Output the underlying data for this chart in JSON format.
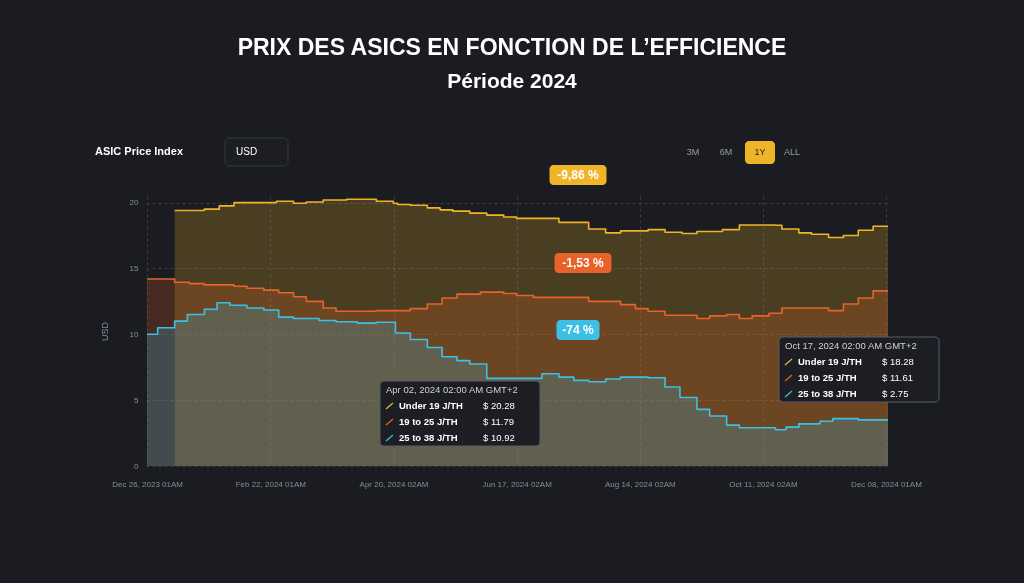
{
  "chart_data": {
    "type": "area",
    "title": "PRIX DES ASICS EN FONCTION DE L’EFFICIENCE",
    "subtitle": "Période 2024",
    "ylabel": "USD",
    "grid": true,
    "legend": "bottom",
    "line_style": "solid",
    "xlim": [
      "2023-12-25T12:00",
      "2024-12-09T00:00"
    ],
    "ylim": [
      0,
      20.5
    ],
    "yticks": [
      0,
      5,
      10,
      15,
      20
    ],
    "xticks": [
      {
        "value": "2023-12-26T01:00",
        "label": "Dec 26, 2023 01AM"
      },
      {
        "value": "2024-02-22T01:00",
        "label": "Feb 22, 2024 01AM"
      },
      {
        "value": "2024-04-20T02:00",
        "label": "Apr 20, 2024 02AM"
      },
      {
        "value": "2024-06-17T02:00",
        "label": "Jun 17, 2024 02AM"
      },
      {
        "value": "2024-08-14T02:00",
        "label": "Aug 14, 2024 02AM"
      },
      {
        "value": "2024-10-11T02:00",
        "label": "Oct 11, 2024 02AM"
      },
      {
        "value": "2024-12-08T01:00",
        "label": "Dec 08, 2024 01AM"
      }
    ],
    "series": [
      {
        "name": "Under 19 J/TH",
        "color": "#f0b429",
        "x": [
          "2024-01-08",
          "2024-01-22",
          "2024-01-22",
          "2024-01-29",
          "2024-01-29",
          "2024-02-05",
          "2024-02-05",
          "2024-02-25",
          "2024-02-25",
          "2024-03-04",
          "2024-03-04",
          "2024-03-10",
          "2024-03-10",
          "2024-03-18",
          "2024-03-18",
          "2024-03-29",
          "2024-03-29",
          "2024-04-12",
          "2024-04-12",
          "2024-04-20",
          "2024-04-20",
          "2024-04-22",
          "2024-04-22",
          "2024-04-28",
          "2024-04-28",
          "2024-05-06",
          "2024-05-06",
          "2024-05-12",
          "2024-05-12",
          "2024-05-18",
          "2024-05-18",
          "2024-05-26",
          "2024-05-26",
          "2024-06-03",
          "2024-06-03",
          "2024-06-11",
          "2024-06-11",
          "2024-06-17",
          "2024-06-17",
          "2024-07-07",
          "2024-07-07",
          "2024-07-21",
          "2024-07-21",
          "2024-07-29",
          "2024-07-29",
          "2024-08-05",
          "2024-08-05",
          "2024-08-18",
          "2024-08-18",
          "2024-08-26",
          "2024-08-26",
          "2024-09-03",
          "2024-09-03",
          "2024-09-10",
          "2024-09-10",
          "2024-09-22",
          "2024-09-22",
          "2024-09-30",
          "2024-09-30",
          "2024-10-17",
          "2024-10-17",
          "2024-10-20",
          "2024-10-20",
          "2024-10-28",
          "2024-10-28",
          "2024-11-03",
          "2024-11-03",
          "2024-11-11",
          "2024-11-11",
          "2024-11-18",
          "2024-11-18",
          "2024-11-25",
          "2024-11-25",
          "2024-12-02",
          "2024-12-02",
          "2024-12-09"
        ],
        "values": [
          19.4,
          19.4,
          19.5,
          19.5,
          19.75,
          19.75,
          20.0,
          20.0,
          20.1,
          20.1,
          19.95,
          19.95,
          20.05,
          20.05,
          20.2,
          20.2,
          20.25,
          20.25,
          20.1,
          20.1,
          19.95,
          19.95,
          19.85,
          19.85,
          19.8,
          19.8,
          19.6,
          19.6,
          19.45,
          19.45,
          19.35,
          19.35,
          19.2,
          19.2,
          19.05,
          19.05,
          18.9,
          18.9,
          18.8,
          18.8,
          18.5,
          18.5,
          18.0,
          18.0,
          17.7,
          17.7,
          17.85,
          17.85,
          17.95,
          17.95,
          17.75,
          17.75,
          17.65,
          17.65,
          17.8,
          17.8,
          17.95,
          17.95,
          18.3,
          18.3,
          18.28,
          18.28,
          18.0,
          18.0,
          17.7,
          17.7,
          17.6,
          17.6,
          17.35,
          17.35,
          17.5,
          17.5,
          17.9,
          17.9,
          18.2,
          18.2
        ]
      },
      {
        "name": "19 to 25 J/TH",
        "color": "#e8622a",
        "x": [
          "2023-12-26",
          "2024-01-08",
          "2024-01-08",
          "2024-01-15",
          "2024-01-15",
          "2024-01-22",
          "2024-01-22",
          "2024-02-05",
          "2024-02-05",
          "2024-02-11",
          "2024-02-11",
          "2024-02-19",
          "2024-02-19",
          "2024-02-26",
          "2024-02-26",
          "2024-03-04",
          "2024-03-04",
          "2024-03-10",
          "2024-03-10",
          "2024-03-18",
          "2024-03-18",
          "2024-03-24",
          "2024-03-24",
          "2024-04-12",
          "2024-04-12",
          "2024-04-28",
          "2024-04-28",
          "2024-05-06",
          "2024-05-06",
          "2024-05-13",
          "2024-05-13",
          "2024-05-20",
          "2024-05-20",
          "2024-05-31",
          "2024-05-31",
          "2024-06-11",
          "2024-06-11",
          "2024-06-17",
          "2024-06-17",
          "2024-06-25",
          "2024-06-25",
          "2024-07-21",
          "2024-07-21",
          "2024-08-05",
          "2024-08-05",
          "2024-08-12",
          "2024-08-12",
          "2024-08-18",
          "2024-08-18",
          "2024-08-26",
          "2024-08-26",
          "2024-09-10",
          "2024-09-10",
          "2024-09-16",
          "2024-09-16",
          "2024-09-24",
          "2024-09-24",
          "2024-09-30",
          "2024-09-30",
          "2024-10-06",
          "2024-10-06",
          "2024-10-14",
          "2024-10-14",
          "2024-10-20",
          "2024-10-20",
          "2024-11-11",
          "2024-11-11",
          "2024-11-18",
          "2024-11-18",
          "2024-11-25",
          "2024-11-25",
          "2024-12-02",
          "2024-12-02",
          "2024-12-09"
        ],
        "values": [
          14.2,
          14.2,
          13.95,
          13.95,
          13.85,
          13.85,
          13.75,
          13.75,
          13.65,
          13.65,
          13.5,
          13.5,
          13.35,
          13.35,
          13.15,
          13.15,
          12.85,
          12.85,
          12.5,
          12.5,
          12.0,
          12.0,
          11.75,
          11.75,
          11.8,
          11.8,
          11.95,
          11.95,
          12.3,
          12.3,
          12.75,
          12.75,
          13.05,
          13.05,
          13.2,
          13.2,
          13.1,
          13.1,
          12.95,
          12.95,
          12.8,
          12.8,
          12.5,
          12.5,
          12.25,
          12.25,
          11.95,
          11.95,
          11.75,
          11.75,
          11.45,
          11.45,
          11.2,
          11.2,
          11.4,
          11.4,
          11.5,
          11.5,
          11.2,
          11.2,
          11.4,
          11.4,
          11.6,
          11.6,
          12.0,
          12.0,
          11.8,
          11.8,
          12.3,
          12.3,
          12.75,
          12.75,
          13.3,
          13.3
        ]
      },
      {
        "name": "25 to 38 J/TH",
        "color": "#3cc0e6",
        "x": [
          "2023-12-26",
          "2023-12-31",
          "2023-12-31",
          "2024-01-08",
          "2024-01-08",
          "2024-01-14",
          "2024-01-14",
          "2024-01-22",
          "2024-01-22",
          "2024-01-28",
          "2024-01-28",
          "2024-02-03",
          "2024-02-03",
          "2024-02-11",
          "2024-02-11",
          "2024-02-19",
          "2024-02-19",
          "2024-02-26",
          "2024-02-26",
          "2024-03-04",
          "2024-03-04",
          "2024-03-16",
          "2024-03-16",
          "2024-03-24",
          "2024-03-24",
          "2024-04-03",
          "2024-04-03",
          "2024-04-12",
          "2024-04-12",
          "2024-04-21",
          "2024-04-21",
          "2024-04-28",
          "2024-04-28",
          "2024-05-06",
          "2024-05-06",
          "2024-05-13",
          "2024-05-13",
          "2024-05-20",
          "2024-05-20",
          "2024-05-26",
          "2024-05-26",
          "2024-06-03",
          "2024-06-03",
          "2024-06-29",
          "2024-06-29",
          "2024-07-07",
          "2024-07-07",
          "2024-07-14",
          "2024-07-14",
          "2024-07-21",
          "2024-07-21",
          "2024-07-29",
          "2024-07-29",
          "2024-08-05",
          "2024-08-05",
          "2024-08-18",
          "2024-08-18",
          "2024-08-26",
          "2024-08-26",
          "2024-09-02",
          "2024-09-02",
          "2024-09-10",
          "2024-09-10",
          "2024-09-16",
          "2024-09-16",
          "2024-09-24",
          "2024-09-24",
          "2024-09-30",
          "2024-09-30",
          "2024-10-17",
          "2024-10-17",
          "2024-10-22",
          "2024-10-22",
          "2024-10-28",
          "2024-10-28",
          "2024-11-07",
          "2024-11-07",
          "2024-11-13",
          "2024-11-13",
          "2024-11-25",
          "2024-11-25",
          "2024-12-09"
        ],
        "values": [
          10.0,
          10.0,
          10.5,
          10.5,
          11.0,
          11.0,
          11.5,
          11.5,
          11.9,
          11.9,
          12.4,
          12.4,
          12.2,
          12.2,
          12.0,
          12.0,
          11.85,
          11.85,
          11.3,
          11.3,
          11.2,
          11.2,
          11.05,
          11.05,
          10.95,
          10.95,
          10.85,
          10.85,
          10.92,
          10.92,
          10.1,
          10.1,
          9.6,
          9.6,
          9.0,
          9.0,
          8.3,
          8.3,
          8.0,
          8.0,
          7.75,
          7.75,
          6.65,
          6.65,
          7.0,
          7.0,
          6.75,
          6.75,
          6.5,
          6.5,
          6.4,
          6.4,
          6.6,
          6.6,
          6.75,
          6.75,
          6.7,
          6.7,
          6.0,
          6.0,
          5.2,
          5.2,
          4.3,
          4.3,
          3.8,
          3.8,
          3.1,
          3.1,
          2.9,
          2.9,
          2.75,
          2.75,
          2.95,
          2.95,
          3.2,
          3.2,
          3.4,
          3.4,
          3.6,
          3.6,
          3.5,
          3.5
        ]
      }
    ],
    "annotations": [
      "-9,86 %",
      "-1,53 %",
      "-74 %",
      "Apr 02, 2024 02:00 AM GMT+2",
      "$ 20.28",
      "$ 11.79",
      "$ 10.92",
      "Oct 17, 2024 02:00 AM GMT+2",
      "$ 18.28",
      "$ 11.61",
      "$ 2.75",
      "ASIC Price Index",
      "USD",
      "3M",
      "6M",
      "1Y",
      "ALL"
    ]
  }
}
